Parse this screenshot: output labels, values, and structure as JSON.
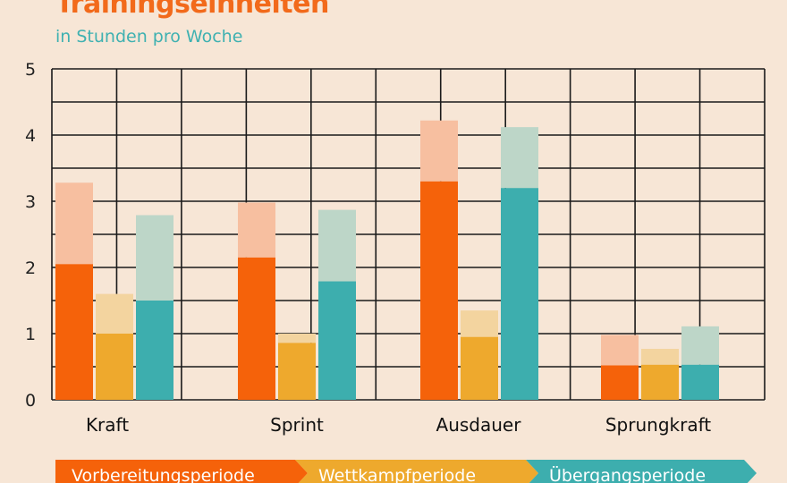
{
  "chart_data": {
    "type": "bar",
    "title": "Trainingseinheiten",
    "subtitle": "in Stunden pro Woche",
    "categories": [
      "Kraft",
      "Sprint",
      "Ausdauer",
      "Sprungkraft"
    ],
    "ylim": [
      0,
      5
    ],
    "yticks": [
      0,
      1,
      2,
      3,
      4,
      5
    ],
    "grid": true,
    "series": [
      {
        "name": "Vorbereitungsperiode",
        "values": [
          2.05,
          2.15,
          3.3,
          0.52
        ],
        "upper_values": [
          3.28,
          2.98,
          4.22,
          0.98
        ],
        "color": "#f5620a",
        "light_color": "#f7bfa0"
      },
      {
        "name": "Wettkampfperiode",
        "values": [
          1.0,
          0.86,
          0.95,
          0.53
        ],
        "upper_values": [
          1.6,
          1.0,
          1.35,
          0.77
        ],
        "color": "#eea92d",
        "light_color": "#f3d49f"
      },
      {
        "name": "Übergangsperiode",
        "values": [
          1.5,
          1.79,
          3.2,
          0.53
        ],
        "upper_values": [
          2.79,
          2.87,
          4.12,
          1.11
        ],
        "color": "#3daeae",
        "light_color": "#bdd6c8"
      }
    ],
    "legend_position": "bottom"
  }
}
